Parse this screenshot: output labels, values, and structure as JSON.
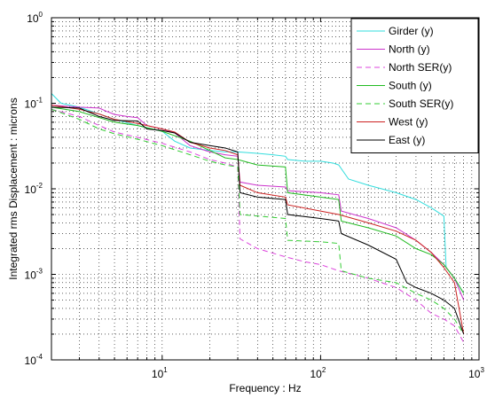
{
  "chart_data": {
    "type": "line",
    "title": "",
    "xlabel": "Frequency : Hz",
    "ylabel": "Integrated rms Displacement : microns",
    "x_scale": "log",
    "y_scale": "log",
    "xlim": [
      2,
      1000
    ],
    "ylim": [
      0.0001,
      1
    ],
    "grid": true,
    "legend_position": "top-right",
    "x_ticks": [
      {
        "base": "10",
        "exp": "1"
      },
      {
        "base": "10",
        "exp": "2"
      },
      {
        "base": "10",
        "exp": "3"
      }
    ],
    "y_ticks": [
      {
        "base": "10",
        "exp": "-4"
      },
      {
        "base": "10",
        "exp": "-3"
      },
      {
        "base": "10",
        "exp": "-2"
      },
      {
        "base": "10",
        "exp": "-1"
      },
      {
        "base": "10",
        "exp": "0"
      }
    ],
    "series": [
      {
        "name": "Girder (y)",
        "color": "#33dddd",
        "dash": "solid",
        "points": [
          [
            2,
            0.13
          ],
          [
            2.3,
            0.1
          ],
          [
            3,
            0.09
          ],
          [
            4,
            0.075
          ],
          [
            5,
            0.065
          ],
          [
            7,
            0.055
          ],
          [
            10,
            0.047
          ],
          [
            12,
            0.036
          ],
          [
            15,
            0.03
          ],
          [
            20,
            0.028
          ],
          [
            25,
            0.027
          ],
          [
            30,
            0.027
          ],
          [
            40,
            0.026
          ],
          [
            50,
            0.025
          ],
          [
            60,
            0.024
          ],
          [
            62,
            0.022
          ],
          [
            80,
            0.021
          ],
          [
            100,
            0.021
          ],
          [
            120,
            0.02
          ],
          [
            130,
            0.019
          ],
          [
            150,
            0.013
          ],
          [
            200,
            0.011
          ],
          [
            300,
            0.009
          ],
          [
            400,
            0.0075
          ],
          [
            500,
            0.006
          ],
          [
            600,
            0.0048
          ],
          [
            620,
            0.0012
          ],
          [
            700,
            0.0009
          ],
          [
            800,
            0.0006
          ]
        ]
      },
      {
        "name": "North (y)",
        "color": "#cc33cc",
        "dash": "solid",
        "points": [
          [
            2,
            0.095
          ],
          [
            3,
            0.09
          ],
          [
            4,
            0.088
          ],
          [
            4.5,
            0.08
          ],
          [
            5,
            0.074
          ],
          [
            6,
            0.07
          ],
          [
            7,
            0.068
          ],
          [
            8,
            0.055
          ],
          [
            10,
            0.05
          ],
          [
            12,
            0.045
          ],
          [
            15,
            0.032
          ],
          [
            20,
            0.027
          ],
          [
            25,
            0.025
          ],
          [
            30,
            0.024
          ],
          [
            31,
            0.012
          ],
          [
            40,
            0.011
          ],
          [
            60,
            0.0105
          ],
          [
            62,
            0.0095
          ],
          [
            100,
            0.009
          ],
          [
            130,
            0.0085
          ],
          [
            135,
            0.0055
          ],
          [
            200,
            0.0045
          ],
          [
            300,
            0.0035
          ],
          [
            400,
            0.0025
          ],
          [
            500,
            0.0018
          ],
          [
            600,
            0.0013
          ],
          [
            700,
            0.0009
          ],
          [
            800,
            0.0005
          ]
        ]
      },
      {
        "name": "North SER(y)",
        "color": "#dd44dd",
        "dash": "dashed",
        "points": [
          [
            2,
            0.085
          ],
          [
            3,
            0.07
          ],
          [
            4,
            0.055
          ],
          [
            5,
            0.046
          ],
          [
            7,
            0.04
          ],
          [
            10,
            0.034
          ],
          [
            15,
            0.027
          ],
          [
            20,
            0.022
          ],
          [
            25,
            0.02
          ],
          [
            30,
            0.018
          ],
          [
            31,
            0.0026
          ],
          [
            40,
            0.002
          ],
          [
            60,
            0.0016
          ],
          [
            80,
            0.0014
          ],
          [
            100,
            0.0013
          ],
          [
            130,
            0.0011
          ],
          [
            200,
            0.0009
          ],
          [
            300,
            0.0007
          ],
          [
            400,
            0.0005
          ],
          [
            500,
            0.00035
          ],
          [
            600,
            0.0003
          ],
          [
            700,
            0.00025
          ],
          [
            800,
            0.00016
          ]
        ]
      },
      {
        "name": "South (y)",
        "color": "#22bb22",
        "dash": "solid",
        "points": [
          [
            2,
            0.09
          ],
          [
            3,
            0.08
          ],
          [
            4,
            0.068
          ],
          [
            5,
            0.06
          ],
          [
            7,
            0.055
          ],
          [
            10,
            0.047
          ],
          [
            15,
            0.036
          ],
          [
            20,
            0.028
          ],
          [
            25,
            0.023
          ],
          [
            30,
            0.022
          ],
          [
            40,
            0.019
          ],
          [
            60,
            0.018
          ],
          [
            62,
            0.009
          ],
          [
            100,
            0.008
          ],
          [
            130,
            0.0075
          ],
          [
            135,
            0.0042
          ],
          [
            200,
            0.0035
          ],
          [
            300,
            0.0028
          ],
          [
            400,
            0.002
          ],
          [
            500,
            0.0017
          ],
          [
            600,
            0.0013
          ],
          [
            700,
            0.0009
          ],
          [
            800,
            0.0006
          ]
        ]
      },
      {
        "name": "South SER(y)",
        "color": "#33cc33",
        "dash": "dashed",
        "points": [
          [
            2,
            0.085
          ],
          [
            3,
            0.065
          ],
          [
            4,
            0.05
          ],
          [
            5,
            0.044
          ],
          [
            7,
            0.038
          ],
          [
            10,
            0.032
          ],
          [
            15,
            0.025
          ],
          [
            20,
            0.021
          ],
          [
            25,
            0.019
          ],
          [
            30,
            0.018
          ],
          [
            31,
            0.005
          ],
          [
            60,
            0.0045
          ],
          [
            62,
            0.0025
          ],
          [
            100,
            0.0024
          ],
          [
            130,
            0.0023
          ],
          [
            135,
            0.0011
          ],
          [
            200,
            0.0009
          ],
          [
            300,
            0.0008
          ],
          [
            400,
            0.0006
          ],
          [
            500,
            0.0005
          ],
          [
            600,
            0.0004
          ],
          [
            700,
            0.0003
          ],
          [
            800,
            0.0002
          ]
        ]
      },
      {
        "name": "West (y)",
        "color": "#cc2222",
        "dash": "solid",
        "points": [
          [
            2,
            0.095
          ],
          [
            3,
            0.085
          ],
          [
            4,
            0.075
          ],
          [
            5,
            0.065
          ],
          [
            7,
            0.058
          ],
          [
            10,
            0.05
          ],
          [
            12,
            0.046
          ],
          [
            15,
            0.035
          ],
          [
            20,
            0.03
          ],
          [
            25,
            0.028
          ],
          [
            30,
            0.025
          ],
          [
            31,
            0.011
          ],
          [
            40,
            0.009
          ],
          [
            60,
            0.008
          ],
          [
            62,
            0.0065
          ],
          [
            100,
            0.0055
          ],
          [
            130,
            0.005
          ],
          [
            200,
            0.004
          ],
          [
            300,
            0.0032
          ],
          [
            400,
            0.0025
          ],
          [
            500,
            0.0018
          ],
          [
            600,
            0.0012
          ],
          [
            700,
            0.0008
          ],
          [
            800,
            0.0002
          ]
        ]
      },
      {
        "name": "East (y)",
        "color": "#000000",
        "dash": "solid",
        "points": [
          [
            2,
            0.09
          ],
          [
            3,
            0.088
          ],
          [
            4,
            0.07
          ],
          [
            5,
            0.063
          ],
          [
            7,
            0.062
          ],
          [
            8,
            0.05
          ],
          [
            10,
            0.048
          ],
          [
            12,
            0.045
          ],
          [
            15,
            0.035
          ],
          [
            20,
            0.032
          ],
          [
            25,
            0.03
          ],
          [
            30,
            0.027
          ],
          [
            31,
            0.009
          ],
          [
            40,
            0.008
          ],
          [
            60,
            0.0075
          ],
          [
            62,
            0.005
          ],
          [
            100,
            0.0045
          ],
          [
            130,
            0.0042
          ],
          [
            135,
            0.003
          ],
          [
            200,
            0.0022
          ],
          [
            300,
            0.0015
          ],
          [
            350,
            0.0008
          ],
          [
            400,
            0.0007
          ],
          [
            500,
            0.0006
          ],
          [
            600,
            0.0005
          ],
          [
            700,
            0.0004
          ],
          [
            800,
            0.0002
          ]
        ]
      }
    ]
  }
}
